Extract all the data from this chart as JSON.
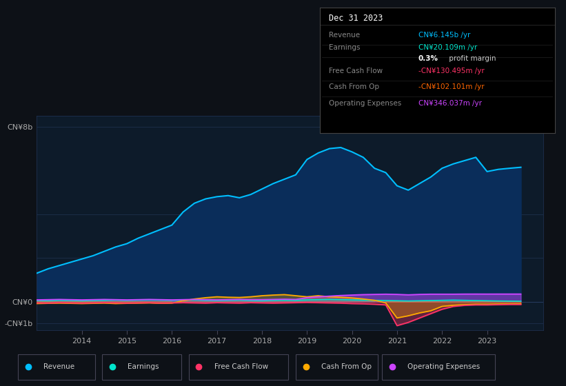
{
  "bg_color": "#0d1117",
  "plot_bg_color": "#0d1b2a",
  "grid_color": "#253a5e",
  "title_box": {
    "date": "Dec 31 2023",
    "rows": [
      {
        "label": "Revenue",
        "value": "CN¥6.145b /yr",
        "value_color": "#00bfff",
        "bold_prefix": ""
      },
      {
        "label": "Earnings",
        "value": "CN¥20.109m /yr",
        "value_color": "#00e5cc",
        "bold_prefix": ""
      },
      {
        "label": "",
        "value": " profit margin",
        "value_color": "#cccccc",
        "bold_prefix": "0.3%"
      },
      {
        "label": "Free Cash Flow",
        "value": "-CN¥130.495m /yr",
        "value_color": "#ff3366",
        "bold_prefix": ""
      },
      {
        "label": "Cash From Op",
        "value": "-CN¥102.101m /yr",
        "value_color": "#ff6600",
        "bold_prefix": ""
      },
      {
        "label": "Operating Expenses",
        "value": "CN¥346.037m /yr",
        "value_color": "#cc44ff",
        "bold_prefix": ""
      }
    ]
  },
  "years": [
    2013.0,
    2013.25,
    2013.5,
    2013.75,
    2014.0,
    2014.25,
    2014.5,
    2014.75,
    2015.0,
    2015.25,
    2015.5,
    2015.75,
    2016.0,
    2016.25,
    2016.5,
    2016.75,
    2017.0,
    2017.25,
    2017.5,
    2017.75,
    2018.0,
    2018.25,
    2018.5,
    2018.75,
    2019.0,
    2019.25,
    2019.5,
    2019.75,
    2020.0,
    2020.25,
    2020.5,
    2020.75,
    2021.0,
    2021.25,
    2021.5,
    2021.75,
    2022.0,
    2022.25,
    2022.5,
    2022.75,
    2023.0,
    2023.25,
    2023.5,
    2023.75
  ],
  "revenue": [
    1.3,
    1.5,
    1.65,
    1.8,
    1.95,
    2.1,
    2.3,
    2.5,
    2.65,
    2.9,
    3.1,
    3.3,
    3.5,
    4.1,
    4.5,
    4.7,
    4.8,
    4.85,
    4.75,
    4.9,
    5.15,
    5.4,
    5.6,
    5.8,
    6.5,
    6.8,
    7.0,
    7.05,
    6.85,
    6.6,
    6.1,
    5.9,
    5.3,
    5.1,
    5.4,
    5.7,
    6.1,
    6.3,
    6.45,
    6.6,
    5.95,
    6.05,
    6.1,
    6.145
  ],
  "earnings": [
    0.05,
    0.04,
    0.06,
    0.05,
    0.04,
    0.05,
    0.06,
    0.07,
    0.06,
    0.07,
    0.08,
    0.07,
    0.06,
    0.07,
    0.08,
    0.06,
    0.05,
    0.06,
    0.07,
    0.05,
    0.04,
    0.06,
    0.07,
    0.06,
    0.08,
    0.09,
    0.1,
    0.09,
    0.08,
    0.07,
    0.06,
    0.05,
    0.04,
    0.03,
    0.04,
    0.05,
    0.06,
    0.07,
    0.06,
    0.05,
    0.04,
    0.03,
    0.025,
    0.02
  ],
  "free_cash_flow": [
    -0.06,
    -0.07,
    -0.05,
    -0.06,
    -0.07,
    -0.06,
    -0.05,
    -0.06,
    -0.07,
    -0.06,
    -0.05,
    -0.07,
    -0.06,
    -0.05,
    -0.06,
    -0.07,
    -0.05,
    -0.06,
    -0.07,
    -0.05,
    -0.06,
    -0.07,
    -0.06,
    -0.05,
    -0.04,
    -0.05,
    -0.06,
    -0.07,
    -0.09,
    -0.1,
    -0.12,
    -0.15,
    -1.1,
    -0.95,
    -0.75,
    -0.55,
    -0.35,
    -0.22,
    -0.17,
    -0.15,
    -0.15,
    -0.14,
    -0.13,
    -0.13
  ],
  "cash_from_op": [
    -0.09,
    -0.08,
    -0.07,
    -0.08,
    -0.09,
    -0.08,
    -0.07,
    -0.09,
    -0.08,
    -0.07,
    -0.06,
    -0.08,
    -0.07,
    0.04,
    0.12,
    0.18,
    0.22,
    0.2,
    0.19,
    0.22,
    0.27,
    0.3,
    0.32,
    0.27,
    0.22,
    0.27,
    0.22,
    0.2,
    0.17,
    0.12,
    0.06,
    -0.06,
    -0.75,
    -0.65,
    -0.52,
    -0.42,
    -0.22,
    -0.17,
    -0.14,
    -0.12,
    -0.12,
    -0.11,
    -0.105,
    -0.102
  ],
  "operating_expenses": [
    0.08,
    0.09,
    0.1,
    0.09,
    0.08,
    0.09,
    0.1,
    0.09,
    0.08,
    0.09,
    0.1,
    0.09,
    0.08,
    0.09,
    0.1,
    0.09,
    0.08,
    0.09,
    0.1,
    0.09,
    0.09,
    0.1,
    0.11,
    0.1,
    0.18,
    0.22,
    0.25,
    0.28,
    0.3,
    0.32,
    0.33,
    0.34,
    0.33,
    0.31,
    0.33,
    0.34,
    0.34,
    0.34,
    0.345,
    0.346,
    0.345,
    0.346,
    0.346,
    0.346
  ],
  "ylim": [
    -1.3,
    8.5
  ],
  "ytick_vals": [
    -1.0,
    0.0,
    8.0
  ],
  "ytick_labels": [
    "-CN¥1b",
    "CN¥0",
    "CN¥8b"
  ],
  "xticks": [
    2014,
    2015,
    2016,
    2017,
    2018,
    2019,
    2020,
    2021,
    2022,
    2023
  ],
  "revenue_color": "#00bfff",
  "revenue_fill": "#0a2d5a",
  "earnings_color": "#00e5cc",
  "fcf_color": "#ff3366",
  "cashop_color": "#ffaa00",
  "opex_color": "#cc44ff",
  "legend_items": [
    "Revenue",
    "Earnings",
    "Free Cash Flow",
    "Cash From Op",
    "Operating Expenses"
  ],
  "legend_colors": [
    "#00bfff",
    "#00e5cc",
    "#ff3366",
    "#ffaa00",
    "#cc44ff"
  ]
}
